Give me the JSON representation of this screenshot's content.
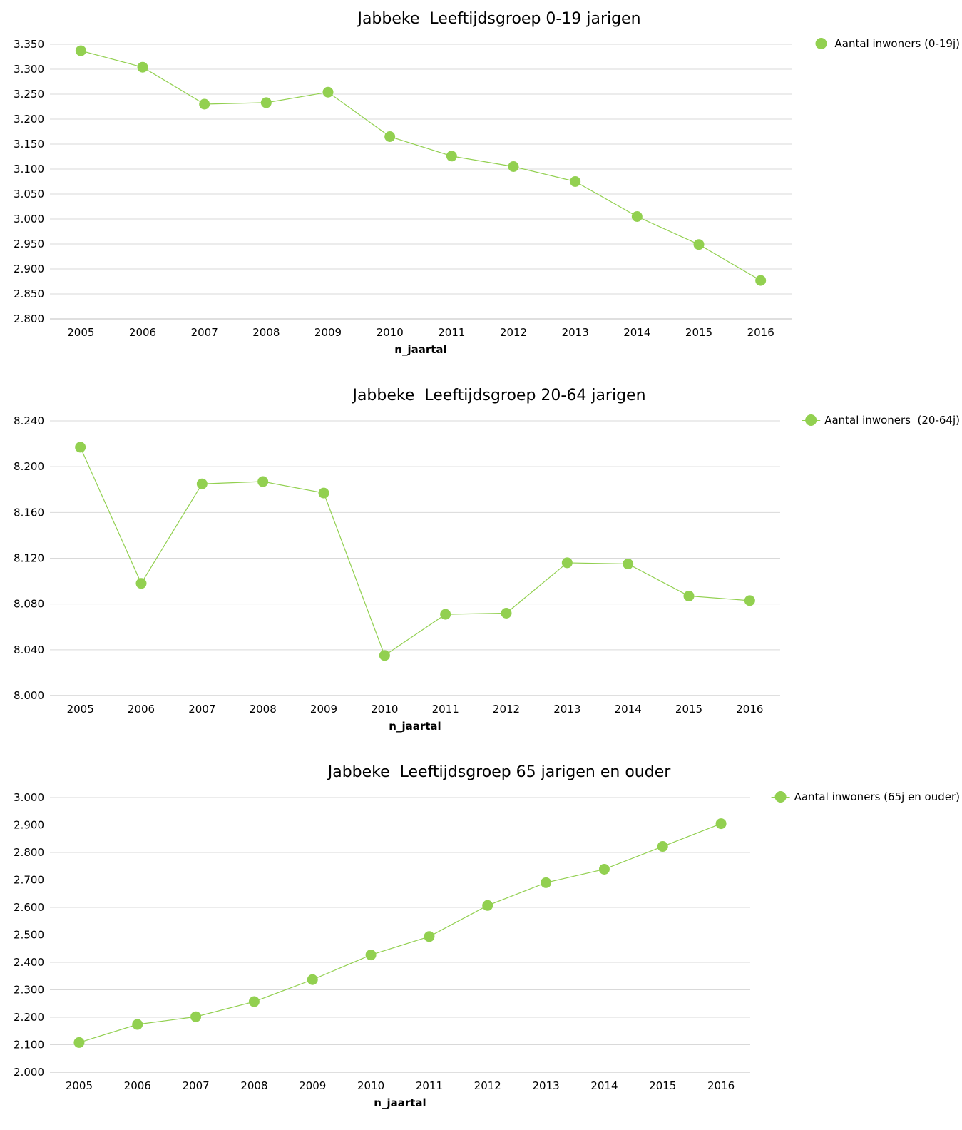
{
  "chart_data": [
    {
      "type": "line",
      "title": "Jabbeke  Leeftijdsgroep 0-19 jarigen",
      "xlabel": "n_jaartal",
      "ylabel": "",
      "categories": [
        "2005",
        "2006",
        "2007",
        "2008",
        "2009",
        "2010",
        "2011",
        "2012",
        "2013",
        "2014",
        "2015",
        "2016"
      ],
      "series": [
        {
          "name": "Aantal inwoners (0-19j)",
          "values": [
            3337,
            3304,
            3230,
            3233,
            3254,
            3165,
            3126,
            3105,
            3075,
            3005,
            2949,
            2877
          ]
        }
      ],
      "ylim": [
        2800,
        3350
      ],
      "yticks": [
        "3.350",
        "3.300",
        "3.250",
        "3.200",
        "3.150",
        "3.100",
        "3.050",
        "3.000",
        "2.950",
        "2.900",
        "2.850",
        "2.800"
      ],
      "grid": true,
      "legend_position": "top-right",
      "color": "#92d050"
    },
    {
      "type": "line",
      "title": "Jabbeke  Leeftijdsgroep 20-64 jarigen",
      "xlabel": "n_jaartal",
      "ylabel": "",
      "categories": [
        "2005",
        "2006",
        "2007",
        "2008",
        "2009",
        "2010",
        "2011",
        "2012",
        "2013",
        "2014",
        "2015",
        "2016"
      ],
      "series": [
        {
          "name": "Aantal inwoners  (20-64j)",
          "values": [
            8217,
            8098,
            8185,
            8187,
            8177,
            8035,
            8071,
            8072,
            8116,
            8115,
            8087,
            8083
          ]
        }
      ],
      "ylim": [
        8000,
        8240
      ],
      "yticks": [
        "8.240",
        "8.200",
        "8.160",
        "8.120",
        "8.080",
        "8.040",
        "8.000"
      ],
      "grid": true,
      "legend_position": "top-right",
      "color": "#92d050"
    },
    {
      "type": "line",
      "title": "Jabbeke  Leeftijdsgroep 65 jarigen en ouder",
      "xlabel": "n_jaartal",
      "ylabel": "",
      "categories": [
        "2005",
        "2006",
        "2007",
        "2008",
        "2009",
        "2010",
        "2011",
        "2012",
        "2013",
        "2014",
        "2015",
        "2016"
      ],
      "series": [
        {
          "name": "Aantal inwoners (65j en ouder)",
          "values": [
            2108,
            2174,
            2202,
            2257,
            2337,
            2427,
            2494,
            2607,
            2690,
            2739,
            2822,
            2905
          ]
        }
      ],
      "ylim": [
        2000,
        3000
      ],
      "yticks": [
        "3.000",
        "2.900",
        "2.800",
        "2.700",
        "2.600",
        "2.500",
        "2.400",
        "2.300",
        "2.200",
        "2.100",
        "2.000"
      ],
      "grid": true,
      "legend_position": "top-right",
      "color": "#92d050"
    }
  ]
}
